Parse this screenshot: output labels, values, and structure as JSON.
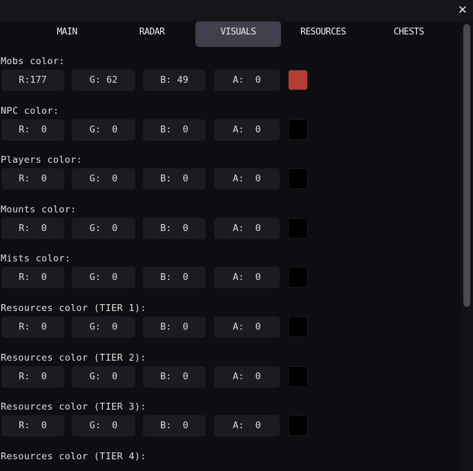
{
  "window": {
    "close_icon": "close-icon"
  },
  "tabs": [
    {
      "label": "MAIN",
      "active": false
    },
    {
      "label": "RADAR",
      "active": false
    },
    {
      "label": "VISUALS",
      "active": true
    },
    {
      "label": "RESOURCES",
      "active": false
    },
    {
      "label": "CHESTS",
      "active": false
    }
  ],
  "sections": [
    {
      "label": "Mobs color:",
      "r": "R:177",
      "g": "G: 62",
      "b": "B: 49",
      "a": "A:  0",
      "swatch": "#b13e31"
    },
    {
      "label": "NPC color:",
      "r": "R:  0",
      "g": "G:  0",
      "b": "B:  0",
      "a": "A:  0",
      "swatch": "#000000"
    },
    {
      "label": "Players color:",
      "r": "R:  0",
      "g": "G:  0",
      "b": "B:  0",
      "a": "A:  0",
      "swatch": "#000000"
    },
    {
      "label": "Mounts color:",
      "r": "R:  0",
      "g": "G:  0",
      "b": "B:  0",
      "a": "A:  0",
      "swatch": "#000000"
    },
    {
      "label": "Mists color:",
      "r": "R:  0",
      "g": "G:  0",
      "b": "B:  0",
      "a": "A:  0",
      "swatch": "#000000"
    },
    {
      "label": "Resources color (TIER 1):",
      "r": "R:  0",
      "g": "G:  0",
      "b": "B:  0",
      "a": "A:  0",
      "swatch": "#000000"
    },
    {
      "label": "Resources color (TIER 2):",
      "r": "R:  0",
      "g": "G:  0",
      "b": "B:  0",
      "a": "A:  0",
      "swatch": "#000000"
    },
    {
      "label": "Resources color (TIER 3):",
      "r": "R:  0",
      "g": "G:  0",
      "b": "B:  0",
      "a": "A:  0",
      "swatch": "#000000"
    },
    {
      "label": "Resources color (TIER 4):"
    }
  ]
}
